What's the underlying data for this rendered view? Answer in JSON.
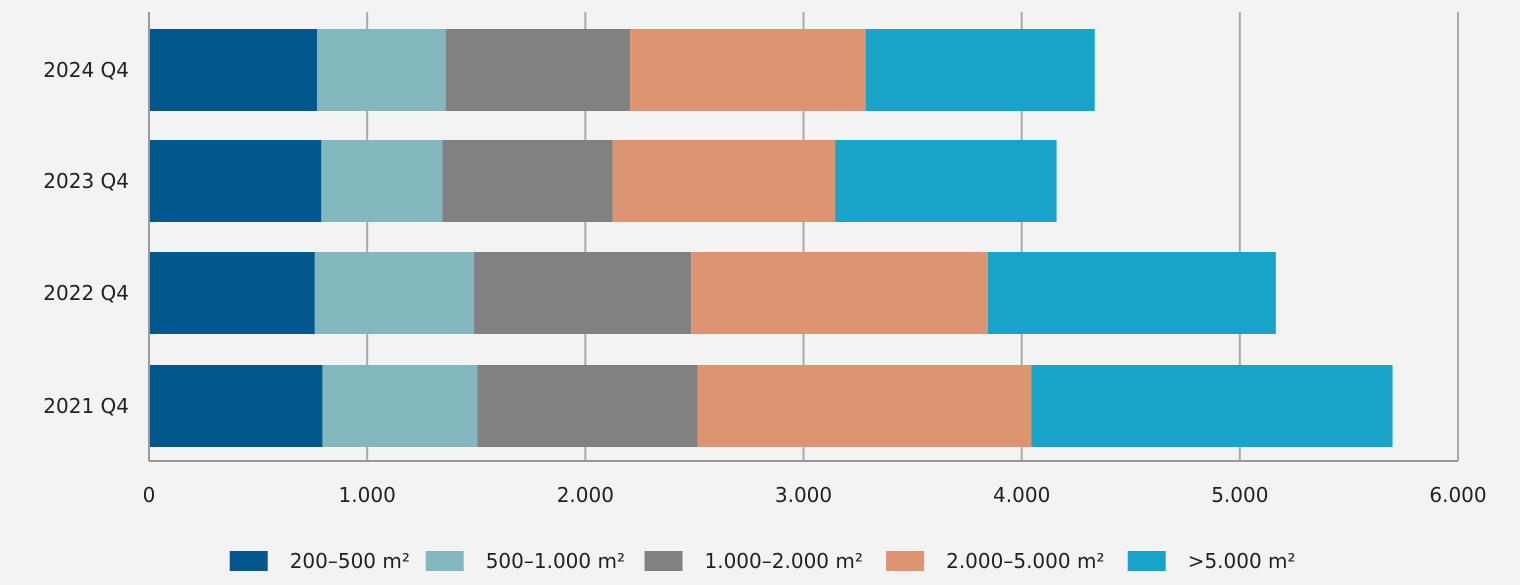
{
  "chart_data": {
    "type": "bar",
    "orientation": "horizontal",
    "stacked": true,
    "title": "",
    "xlabel": "",
    "ylabel": "",
    "categories": [
      "2024 Q4",
      "2023 Q4",
      "2022 Q4",
      "2021 Q4"
    ],
    "series": [
      {
        "name": "200–500 m²",
        "color": "#02588c",
        "values": [
          770,
          790,
          760,
          795
        ]
      },
      {
        "name": "500–1.000 m²",
        "color": "#82b8bd",
        "values": [
          590,
          555,
          730,
          710
        ]
      },
      {
        "name": "1.000–2.000 m²",
        "color": "#818181",
        "values": [
          845,
          780,
          995,
          1010
        ]
      },
      {
        "name": "2.000–5.000 m²",
        "color": "#dc9570",
        "values": [
          1080,
          1020,
          1360,
          1530
        ]
      },
      {
        "name": ">5.000 m²",
        "color": "#17a4c8",
        "values": [
          1050,
          1015,
          1320,
          1655
        ]
      }
    ],
    "xlim": [
      0,
      6000
    ],
    "x_ticks": [
      0,
      1000,
      2000,
      3000,
      4000,
      5000,
      6000
    ],
    "x_tick_labels": [
      "0",
      "1.000",
      "2.000",
      "3.000",
      "4.000",
      "5.000",
      "6.000"
    ],
    "grid": "vertical",
    "legend_position": "bottom",
    "colors": {
      "background": "#f3f3f3",
      "gridline": "#aaaaaa",
      "axis": "#999999",
      "text": "#222222"
    }
  }
}
